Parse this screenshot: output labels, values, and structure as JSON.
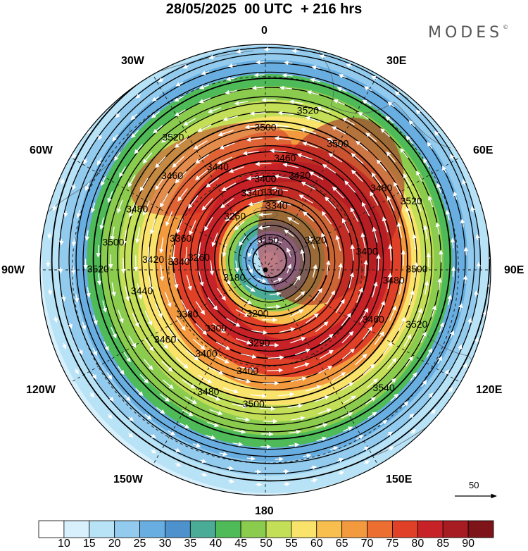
{
  "title": "28/05/2025  00 UTC  + 216 hrs",
  "brand": "MODES",
  "brand_mark": "©",
  "longitude_labels": {
    "lon_0": "0",
    "lon_30e": "30E",
    "lon_60e": "60E",
    "lon_90e": "90E",
    "lon_120e": "120E",
    "lon_150e": "150E",
    "lon_180": "180",
    "lon_150w": "150W",
    "lon_120w": "120W",
    "lon_90w": "90W",
    "lon_60w": "60W",
    "lon_30w": "30W"
  },
  "wind_legend": {
    "value": "50"
  },
  "colorbar": {
    "levels": [
      "10",
      "15",
      "20",
      "25",
      "30",
      "35",
      "40",
      "45",
      "50",
      "55",
      "60",
      "65",
      "70",
      "75",
      "80",
      "85",
      "90"
    ],
    "colors": [
      "#ffffff",
      "#d8f0fb",
      "#b8e2f6",
      "#92cbee",
      "#69aee0",
      "#4e92cd",
      "#4aab96",
      "#4fbb58",
      "#8bcc4f",
      "#c3de57",
      "#fae36b",
      "#f8bf4f",
      "#f39a3f",
      "#ec6e31",
      "#e04027",
      "#c72227",
      "#a71b22",
      "#7c1419"
    ]
  },
  "contour_labels": [
    {
      "text": "3540",
      "lon": 45,
      "lat": 38
    },
    {
      "text": "3520",
      "lon": 70,
      "lat": 40
    },
    {
      "text": "3520",
      "lon": 115,
      "lat": 40
    },
    {
      "text": "3520",
      "lon": 165,
      "lat": 39
    },
    {
      "text": "3520",
      "lon": -145,
      "lat": 40
    },
    {
      "text": "3520",
      "lon": -90,
      "lat": 38
    },
    {
      "text": "3500",
      "lon": -5,
      "lat": 48
    },
    {
      "text": "3500",
      "lon": 90,
      "lat": 43
    },
    {
      "text": "3500",
      "lon": 150,
      "lat": 45
    },
    {
      "text": "3500",
      "lon": -180,
      "lat": 46
    },
    {
      "text": "3500",
      "lon": -100,
      "lat": 42
    },
    {
      "text": "3480",
      "lon": -25,
      "lat": 48
    },
    {
      "text": "3480",
      "lon": 85,
      "lat": 50
    },
    {
      "text": "3480",
      "lon": 125,
      "lat": 46
    },
    {
      "text": "3480",
      "lon": -115,
      "lat": 46
    },
    {
      "text": "3460",
      "lon": -55,
      "lat": 52
    },
    {
      "text": "3460",
      "lon": 65,
      "lat": 53
    },
    {
      "text": "3460",
      "lon": -135,
      "lat": 49
    },
    {
      "text": "3460",
      "lon": 170,
      "lat": 55
    },
    {
      "text": "3440",
      "lon": -80,
      "lat": 51
    },
    {
      "text": "3440",
      "lon": -155,
      "lat": 55
    },
    {
      "text": "3420",
      "lon": 160,
      "lat": 59
    },
    {
      "text": "3420",
      "lon": -95,
      "lat": 55
    },
    {
      "text": "3400",
      "lon": -10,
      "lat": 58
    },
    {
      "text": "3400",
      "lon": -35,
      "lat": 58
    },
    {
      "text": "3400",
      "lon": 100,
      "lat": 58
    },
    {
      "text": "3400",
      "lon": 180,
      "lat": 62
    },
    {
      "text": "3380",
      "lon": -60,
      "lat": 62
    },
    {
      "text": "3360",
      "lon": -110,
      "lat": 62
    },
    {
      "text": "3340",
      "lon": -95,
      "lat": 63
    },
    {
      "text": "3340",
      "lon": -170,
      "lat": 66
    },
    {
      "text": "3340",
      "lon": 170,
      "lat": 70
    },
    {
      "text": "3320",
      "lon": 175,
      "lat": 66
    },
    {
      "text": "3300",
      "lon": -40,
      "lat": 66
    },
    {
      "text": "3290",
      "lon": -5,
      "lat": 67
    },
    {
      "text": "3260",
      "lon": -100,
      "lat": 69
    },
    {
      "text": "3260",
      "lon": -150,
      "lat": 71
    },
    {
      "text": "3220",
      "lon": 120,
      "lat": 72
    },
    {
      "text": "3200",
      "lon": -10,
      "lat": 76
    },
    {
      "text": "3180",
      "lon": -75,
      "lat": 80
    },
    {
      "text": "3150",
      "lon": 175,
      "lat": 81
    }
  ]
}
